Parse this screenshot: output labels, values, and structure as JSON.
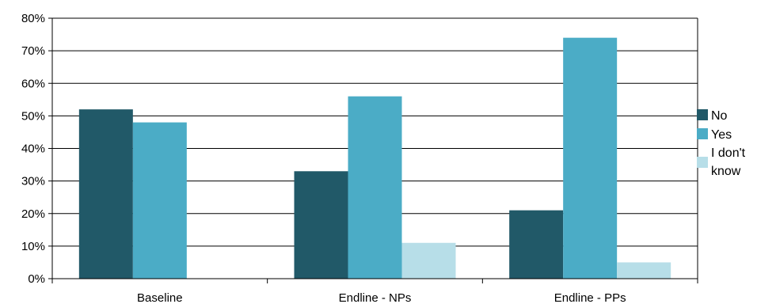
{
  "chart_data": {
    "type": "bar",
    "categories": [
      "Baseline",
      "Endline - NPs",
      "Endline - PPs"
    ],
    "series": [
      {
        "name": "No",
        "values": [
          52,
          33,
          21
        ],
        "color": "#215968"
      },
      {
        "name": "Yes",
        "values": [
          48,
          56,
          74
        ],
        "color": "#4bacc6"
      },
      {
        "name": "I don't know",
        "values": [
          0,
          11,
          5
        ],
        "color": "#b7dee8"
      }
    ],
    "ylim": [
      0,
      80
    ],
    "yticks": [
      0,
      10,
      20,
      30,
      40,
      50,
      60,
      70,
      80
    ],
    "ytick_labels": [
      "0%",
      "10%",
      "20%",
      "30%",
      "40%",
      "50%",
      "60%",
      "70%",
      "80%"
    ],
    "legend_labels": {
      "no": "No",
      "yes": "Yes",
      "idk_line1": "I don't",
      "idk_line2": "know"
    },
    "grid": true,
    "legend_position": "right"
  }
}
